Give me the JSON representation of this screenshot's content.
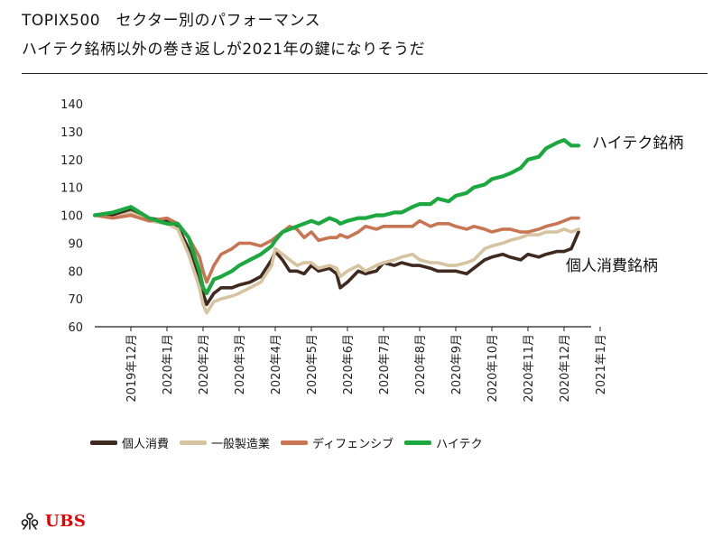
{
  "header": {
    "title": "TOPIX500　セクター別のパフォーマンス",
    "subtitle": "ハイテク銘柄以外の巻き返しが2021年の鍵になりそうだ"
  },
  "brand": {
    "name": "UBS",
    "color": "#e60000",
    "icon": "keys-logo-icon"
  },
  "chart_data": {
    "type": "line",
    "title": "",
    "xlabel": "",
    "ylabel": "",
    "ylim": [
      60,
      140
    ],
    "yticks": [
      60,
      70,
      80,
      90,
      100,
      110,
      120,
      130,
      140
    ],
    "grid": false,
    "legend_position": "bottom",
    "x_start": "2019年12月",
    "x_months": [
      "2019年12月",
      "2020年1月",
      "2020年2月",
      "2020年3月",
      "2020年4月",
      "2020年5月",
      "2020年6月",
      "2020年7月",
      "2020年8月",
      "2020年9月",
      "2020年10月",
      "2020年11月",
      "2020年12月",
      "2021年1月"
    ],
    "x": [
      0,
      0.5,
      1,
      1.5,
      2,
      2.3,
      2.6,
      2.9,
      3,
      3.1,
      3.3,
      3.5,
      3.8,
      4,
      4.3,
      4.6,
      4.9,
      5,
      5.2,
      5.4,
      5.6,
      5.8,
      6,
      6.2,
      6.5,
      6.7,
      6.8,
      7,
      7.3,
      7.5,
      7.8,
      8,
      8.3,
      8.5,
      8.8,
      9,
      9.3,
      9.5,
      9.8,
      10,
      10.3,
      10.5,
      10.8,
      11,
      11.3,
      11.5,
      11.8,
      12,
      12.3,
      12.5,
      12.8,
      13,
      13.2,
      13.4
    ],
    "series": [
      {
        "name": "個人消費",
        "color": "#3f2a20",
        "values": [
          100,
          100,
          102,
          99,
          98,
          96,
          88,
          78,
          72,
          68,
          72,
          74,
          74,
          75,
          76,
          78,
          84,
          87,
          84,
          80,
          80,
          79,
          82,
          80,
          81,
          79,
          74,
          76,
          80,
          79,
          80,
          83,
          82,
          83,
          82,
          82,
          81,
          80,
          80,
          80,
          79,
          81,
          84,
          85,
          86,
          85,
          84,
          86,
          85,
          86,
          87,
          87,
          88,
          94
        ]
      },
      {
        "name": "一般製造業",
        "color": "#d6c3a0",
        "values": [
          100,
          99,
          101,
          98,
          97,
          95,
          86,
          74,
          68,
          65,
          69,
          70,
          71,
          72,
          74,
          76,
          82,
          88,
          86,
          84,
          82,
          83,
          83,
          81,
          82,
          81,
          78,
          80,
          82,
          80,
          82,
          83,
          84,
          85,
          86,
          84,
          83,
          83,
          82,
          82,
          83,
          84,
          88,
          89,
          90,
          91,
          92,
          93,
          93,
          94,
          94,
          95,
          94,
          95
        ]
      },
      {
        "name": "ディフェンシブ",
        "color": "#c87553",
        "values": [
          100,
          99,
          100,
          98,
          99,
          97,
          92,
          85,
          80,
          76,
          82,
          86,
          88,
          90,
          90,
          89,
          91,
          92,
          94,
          96,
          95,
          92,
          94,
          91,
          92,
          92,
          93,
          92,
          94,
          96,
          95,
          96,
          96,
          96,
          96,
          98,
          96,
          97,
          97,
          96,
          95,
          96,
          95,
          94,
          95,
          95,
          94,
          94,
          95,
          96,
          97,
          98,
          99,
          99
        ]
      },
      {
        "name": "ハイテク",
        "color": "#1aa83f",
        "values": [
          100,
          101,
          103,
          99,
          97,
          97,
          92,
          80,
          74,
          72,
          77,
          78,
          80,
          82,
          84,
          86,
          89,
          91,
          94,
          95,
          96,
          97,
          98,
          97,
          99,
          98,
          97,
          98,
          99,
          99,
          100,
          100,
          101,
          101,
          103,
          104,
          104,
          106,
          105,
          107,
          108,
          110,
          111,
          113,
          114,
          115,
          117,
          120,
          121,
          124,
          126,
          127,
          125,
          125
        ]
      }
    ],
    "annotations": [
      {
        "text": "ハイテク銘柄",
        "series": "ハイテク"
      },
      {
        "text": "個人消費銘柄",
        "series": "個人消費"
      }
    ]
  }
}
